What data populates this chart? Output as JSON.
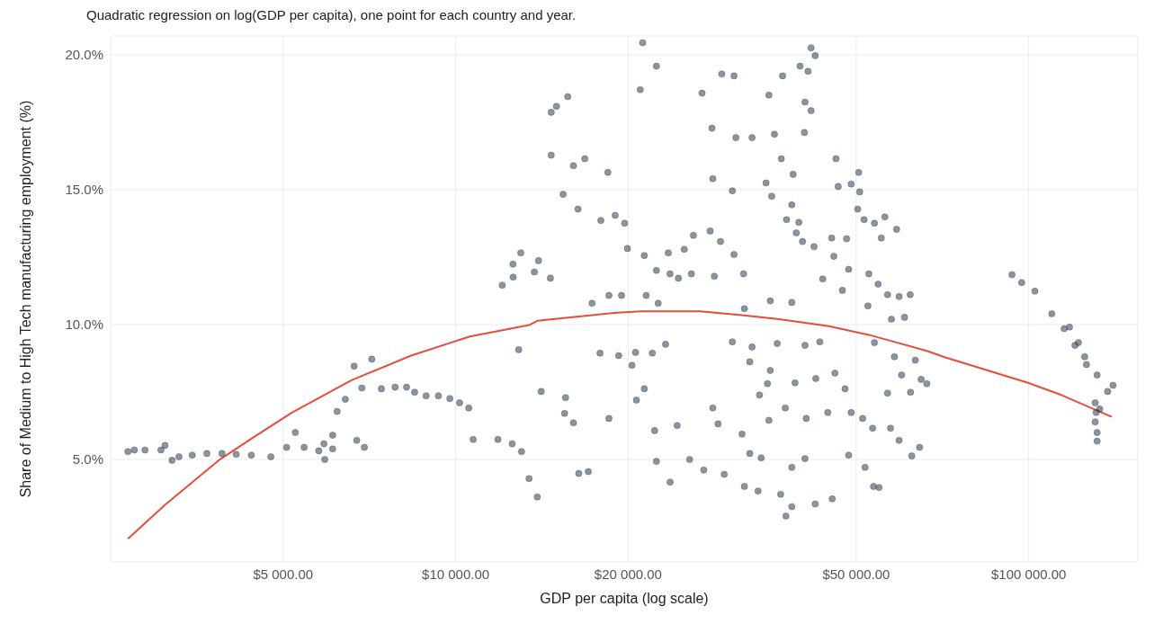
{
  "chart_data": {
    "type": "scatter",
    "subtitle": "Quadratic regression on log(GDP per capita), one point for each country and year.",
    "xlabel": "GDP per capita (log scale)",
    "ylabel": "Share of Medium to High Tech manufacturing employment (%)",
    "log": "x",
    "grid": true,
    "legend": false,
    "marker": "circle",
    "xlim": [
      2500,
      155000
    ],
    "ylim": [
      1.2,
      20.7
    ],
    "xticks": [
      {
        "value": 5000,
        "label": "$5 000.00"
      },
      {
        "value": 10000,
        "label": "$10 000.00"
      },
      {
        "value": 20000,
        "label": "$20 000.00"
      },
      {
        "value": 50000,
        "label": "$50 000.00"
      },
      {
        "value": 100000,
        "label": "$100 000.00"
      }
    ],
    "yticks": [
      {
        "value": 5,
        "label": "5.0%"
      },
      {
        "value": 10,
        "label": "10.0%"
      },
      {
        "value": 15,
        "label": "15.0%"
      },
      {
        "value": 20,
        "label": "20.0%"
      }
    ],
    "series": [
      {
        "color": "#2c3e50",
        "x": [
          2680,
          2750,
          2870,
          3060,
          3110,
          3200,
          3290,
          3470,
          3680,
          3910,
          4140,
          4400,
          4760,
          5070,
          5250,
          5440,
          5770,
          5890,
          5910,
          6100,
          6100,
          6210,
          6420,
          6650,
          6720,
          6860,
          6930,
          7140,
          7420,
          7840,
          8210,
          8480,
          8880,
          9330,
          9770,
          10160,
          10540,
          10730,
          11850,
          12060,
          12600,
          12550,
          12880,
          13030,
          12990,
          12590,
          13720,
          13950,
          14630,
          14680,
          14990,
          15690,
          14680,
          16050,
          16800,
          18430,
          15400,
          16350,
          14100,
          13880,
          13430,
          15550,
          15490,
          16050,
          16400,
          17040,
          18510,
          17920,
          18980,
          19720,
          19250,
          20310,
          20990,
          21200,
          22400,
          17860,
          20600,
          22040,
          23240,
          21340,
          20670,
          19940,
          21340,
          23500,
          25060,
          22400,
          23660,
          24470,
          25780,
          19470,
          18510,
          17300,
          22560,
          21500,
          22240,
          24350,
          22400,
          23670,
          25600,
          27100,
          29420,
          31900,
          33700,
          36900,
          26910,
          29130,
          30600,
          25990,
          27800,
          28980,
          30600,
          28000,
          30830,
          32900,
          28100,
          30400,
          28100,
          28700,
          31600,
          28280,
          31800,
          35400,
          38600,
          31900,
          32600,
          34130,
          38600,
          40700,
          38600,
          37700,
          42400,
          45400,
          30400,
          32900,
          36400,
          40700,
          43200,
          32600,
          35400,
          35000,
          33900,
          37600,
          39100,
          42500,
          45900,
          40900,
          44600,
          35200,
          37200,
          39900,
          41700,
          42400,
          41200,
          40700,
          41700,
          35200,
          36000,
          40600,
          37000,
          38800,
          34800,
          35600,
          37800,
          39700,
          38600,
          39300,
          40300,
          42200,
          43700,
          45300,
          48100,
          45700,
          46100,
          50500,
          46500,
          49000,
          50700,
          50300,
          51600,
          53800,
          56100,
          58800,
          55300,
          48500,
          52600,
          54600,
          56700,
          59400,
          62100,
          47300,
          52400,
          57600,
          60700,
          53800,
          58300,
          63400,
          60000,
          64900,
          56700,
          62200,
          47800,
          49000,
          51300,
          53400,
          57400,
          59400,
          64500,
          48500,
          51800,
          53600,
          54800,
          66400,
          62500,
          93500,
          97200,
          102500,
          109700,
          115300,
          117800,
          120400,
          122100,
          125200,
          126100,
          131600,
          140300,
          137300,
          130600,
          133000,
          131100,
          130600,
          131600,
          131600
        ],
        "values": [
          5.29,
          5.35,
          5.35,
          5.35,
          5.52,
          4.97,
          5.1,
          5.16,
          5.22,
          5.22,
          5.19,
          5.16,
          5.1,
          5.45,
          6.0,
          5.45,
          5.32,
          5.58,
          5.0,
          5.9,
          5.39,
          6.78,
          7.23,
          8.46,
          5.71,
          7.65,
          5.45,
          8.72,
          7.62,
          7.68,
          7.68,
          7.49,
          7.36,
          7.36,
          7.26,
          7.1,
          6.91,
          5.74,
          5.74,
          11.46,
          11.76,
          5.58,
          9.07,
          5.29,
          12.66,
          12.24,
          11.95,
          12.37,
          11.72,
          17.87,
          18.09,
          18.45,
          16.28,
          15.89,
          16.15,
          15.64,
          14.83,
          14.28,
          7.52,
          3.61,
          4.29,
          7.29,
          6.71,
          6.36,
          4.48,
          4.55,
          6.52,
          13.86,
          14.05,
          13.76,
          8.85,
          8.49,
          18.71,
          20.45,
          19.58,
          8.94,
          8.97,
          8.94,
          9.27,
          7.62,
          7.2,
          12.82,
          12.56,
          12.66,
          12.79,
          12.01,
          11.88,
          11.72,
          11.88,
          11.08,
          11.08,
          10.79,
          10.79,
          11.08,
          6.07,
          6.26,
          4.93,
          4.16,
          5.0,
          4.61,
          4.45,
          4.0,
          3.83,
          3.71,
          18.58,
          19.29,
          19.22,
          13.31,
          13.47,
          13.08,
          12.6,
          17.28,
          16.93,
          16.93,
          15.41,
          14.96,
          6.91,
          6.32,
          5.94,
          11.79,
          11.88,
          10.88,
          10.82,
          10.59,
          5.22,
          5.06,
          4.71,
          5.03,
          3.25,
          2.9,
          3.35,
          3.54,
          9.36,
          9.17,
          9.3,
          9.23,
          9.36,
          8.62,
          8.3,
          7.81,
          7.39,
          6.91,
          7.84,
          8.0,
          8.2,
          6.52,
          6.74,
          6.45,
          19.22,
          19.58,
          20.26,
          19.97,
          19.39,
          18.25,
          17.93,
          18.51,
          17.06,
          17.12,
          16.15,
          15.57,
          15.25,
          14.76,
          13.89,
          13.79,
          14.44,
          13.4,
          13.08,
          12.89,
          11.69,
          13.21,
          13.18,
          12.53,
          16.15,
          15.64,
          15.12,
          15.21,
          14.92,
          14.28,
          13.89,
          13.76,
          13.99,
          13.53,
          13.21,
          12.05,
          11.88,
          11.5,
          11.11,
          11.04,
          11.11,
          11.27,
          10.69,
          10.2,
          10.27,
          9.33,
          8.81,
          8.68,
          8.13,
          7.97,
          7.46,
          7.49,
          7.62,
          6.74,
          6.52,
          6.16,
          6.16,
          5.71,
          5.45,
          5.16,
          4.71,
          4.0,
          3.96,
          7.81,
          5.13,
          11.85,
          11.56,
          11.24,
          10.4,
          9.85,
          9.91,
          9.23,
          9.33,
          8.81,
          8.52,
          8.13,
          7.75,
          7.52,
          7.1,
          6.87,
          6.74,
          6.39,
          6.0,
          5.68
        ]
      },
      {
        "type": "line",
        "color": "#e74c3c",
        "marker": "none",
        "line_style": "solid",
        "x": [
          2680,
          3110,
          3860,
          4450,
          5180,
          6580,
          8360,
          10590,
          13430,
          13880,
          18900,
          21000,
          26700,
          31300,
          36700,
          44800,
          52600,
          66800,
          70900,
          99700,
          114000,
          139600
        ],
        "values": [
          2.06,
          3.32,
          4.97,
          5.84,
          6.74,
          7.94,
          8.85,
          9.56,
          9.98,
          10.14,
          10.43,
          10.49,
          10.49,
          10.36,
          10.2,
          9.94,
          9.62,
          9.01,
          8.81,
          7.84,
          7.39,
          6.58
        ]
      }
    ]
  }
}
